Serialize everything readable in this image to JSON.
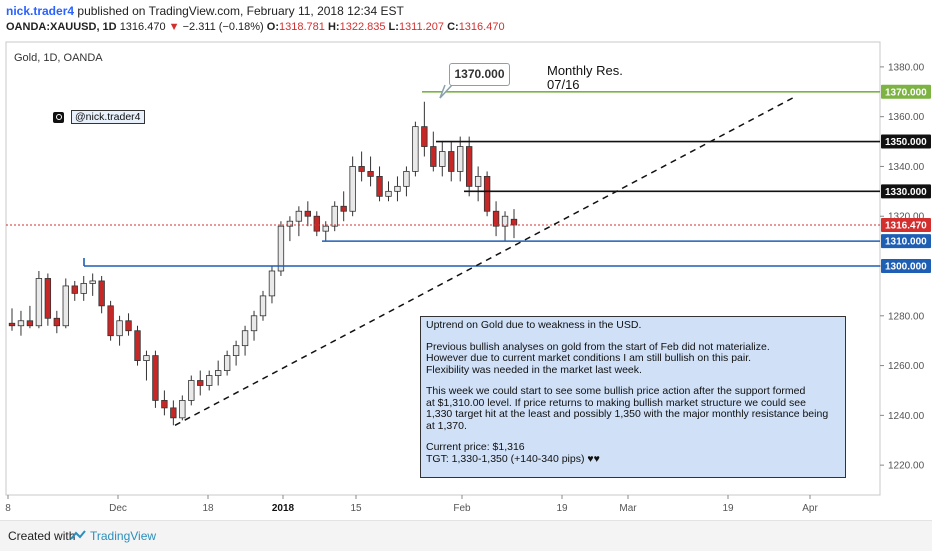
{
  "header": {
    "author": "nick.trader4",
    "published_text": "published on TradingView.com, February 11, 2018 12:34 EST",
    "symbol": "OANDA:XAUUSD, 1D",
    "last": "1316.470",
    "change_arrow": "▼",
    "change": "−2.311 (−0.18%)",
    "o_label": "O:",
    "o_value": "1318.781",
    "h_label": "H:",
    "h_value": "1322.835",
    "l_label": "L:",
    "l_value": "1311.207",
    "c_label": "C:",
    "c_value": "1316.470"
  },
  "chart_title": "Gold, 1D, OANDA",
  "handle": "@nick.trader4",
  "annotation_price": "1370.000",
  "monthly_label_line1": "Monthly Res.",
  "monthly_label_line2": "07/16",
  "note": {
    "p1": "Uptrend on Gold due to weakness in the USD.",
    "p2": "Previous bullish analyses on gold from the start of Feb did not materialize.\nHowever due to current market conditions I am still bullish on this pair.\nFlexibility was needed in the market last week.",
    "p3": "This week we could start to see some bullish price action after the support formed\nat $1,310.00 level. If price returns to making bullish market structure we could see\n1,330 target hit at the least and possibly 1,350 with the major monthly resistance being\nat 1,370.",
    "p4": "Current price: $1,316\nTGT: 1,330-1,350 (+140-340 pips) ♥♥"
  },
  "footer": {
    "created": "Created with",
    "brand": "TradingView"
  },
  "colors": {
    "up": "#e9e9e9",
    "down": "#c62828",
    "green_line": "#7cb342",
    "black_line": "#111111",
    "blue_line": "#1e5fb4",
    "current_price": "#d32f2f"
  },
  "chart_data": {
    "type": "candlestick",
    "title": "Gold, 1D, OANDA",
    "ylim": [
      1208,
      1390
    ],
    "y_ticks": [
      1220,
      1240,
      1260,
      1280,
      1300,
      1320,
      1340,
      1360,
      1380
    ],
    "x_tick_labels": [
      "8",
      "Dec",
      "18",
      "2018",
      "15",
      "Feb",
      "19",
      "Mar",
      "19",
      "Apr"
    ],
    "candles": [
      {
        "o": 1277,
        "h": 1283,
        "l": 1274,
        "c": 1276
      },
      {
        "o": 1276,
        "h": 1282,
        "l": 1272,
        "c": 1278
      },
      {
        "o": 1278,
        "h": 1284,
        "l": 1275,
        "c": 1276
      },
      {
        "o": 1276,
        "h": 1298,
        "l": 1275,
        "c": 1295
      },
      {
        "o": 1295,
        "h": 1297,
        "l": 1276,
        "c": 1279
      },
      {
        "o": 1279,
        "h": 1282,
        "l": 1273,
        "c": 1276
      },
      {
        "o": 1276,
        "h": 1295,
        "l": 1275,
        "c": 1292
      },
      {
        "o": 1292,
        "h": 1294,
        "l": 1286,
        "c": 1289
      },
      {
        "o": 1289,
        "h": 1296,
        "l": 1286,
        "c": 1293
      },
      {
        "o": 1293,
        "h": 1297,
        "l": 1288,
        "c": 1294
      },
      {
        "o": 1294,
        "h": 1296,
        "l": 1281,
        "c": 1284
      },
      {
        "o": 1284,
        "h": 1286,
        "l": 1270,
        "c": 1272
      },
      {
        "o": 1272,
        "h": 1280,
        "l": 1268,
        "c": 1278
      },
      {
        "o": 1278,
        "h": 1281,
        "l": 1272,
        "c": 1274
      },
      {
        "o": 1274,
        "h": 1276,
        "l": 1260,
        "c": 1262
      },
      {
        "o": 1262,
        "h": 1266,
        "l": 1254,
        "c": 1264
      },
      {
        "o": 1264,
        "h": 1266,
        "l": 1243,
        "c": 1246
      },
      {
        "o": 1246,
        "h": 1250,
        "l": 1240,
        "c": 1243
      },
      {
        "o": 1243,
        "h": 1246,
        "l": 1236,
        "c": 1239
      },
      {
        "o": 1239,
        "h": 1248,
        "l": 1238,
        "c": 1246
      },
      {
        "o": 1246,
        "h": 1256,
        "l": 1244,
        "c": 1254
      },
      {
        "o": 1254,
        "h": 1258,
        "l": 1248,
        "c": 1252
      },
      {
        "o": 1252,
        "h": 1258,
        "l": 1250,
        "c": 1256
      },
      {
        "o": 1256,
        "h": 1262,
        "l": 1252,
        "c": 1258
      },
      {
        "o": 1258,
        "h": 1266,
        "l": 1256,
        "c": 1264
      },
      {
        "o": 1264,
        "h": 1270,
        "l": 1260,
        "c": 1268
      },
      {
        "o": 1268,
        "h": 1276,
        "l": 1264,
        "c": 1274
      },
      {
        "o": 1274,
        "h": 1282,
        "l": 1270,
        "c": 1280
      },
      {
        "o": 1280,
        "h": 1290,
        "l": 1278,
        "c": 1288
      },
      {
        "o": 1288,
        "h": 1300,
        "l": 1285,
        "c": 1298
      },
      {
        "o": 1298,
        "h": 1318,
        "l": 1296,
        "c": 1316
      },
      {
        "o": 1316,
        "h": 1320,
        "l": 1310,
        "c": 1318
      },
      {
        "o": 1318,
        "h": 1324,
        "l": 1312,
        "c": 1322
      },
      {
        "o": 1322,
        "h": 1326,
        "l": 1316,
        "c": 1320
      },
      {
        "o": 1320,
        "h": 1322,
        "l": 1312,
        "c": 1314
      },
      {
        "o": 1314,
        "h": 1318,
        "l": 1310,
        "c": 1316
      },
      {
        "o": 1316,
        "h": 1326,
        "l": 1314,
        "c": 1324
      },
      {
        "o": 1324,
        "h": 1330,
        "l": 1318,
        "c": 1322
      },
      {
        "o": 1322,
        "h": 1344,
        "l": 1320,
        "c": 1340
      },
      {
        "o": 1340,
        "h": 1346,
        "l": 1334,
        "c": 1338
      },
      {
        "o": 1338,
        "h": 1344,
        "l": 1332,
        "c": 1336
      },
      {
        "o": 1336,
        "h": 1340,
        "l": 1326,
        "c": 1328
      },
      {
        "o": 1328,
        "h": 1334,
        "l": 1326,
        "c": 1330
      },
      {
        "o": 1330,
        "h": 1336,
        "l": 1326,
        "c": 1332
      },
      {
        "o": 1332,
        "h": 1340,
        "l": 1328,
        "c": 1338
      },
      {
        "o": 1338,
        "h": 1358,
        "l": 1336,
        "c": 1356
      },
      {
        "o": 1356,
        "h": 1366,
        "l": 1344,
        "c": 1348
      },
      {
        "o": 1348,
        "h": 1354,
        "l": 1338,
        "c": 1340
      },
      {
        "o": 1340,
        "h": 1350,
        "l": 1336,
        "c": 1346
      },
      {
        "o": 1346,
        "h": 1350,
        "l": 1334,
        "c": 1338
      },
      {
        "o": 1338,
        "h": 1352,
        "l": 1334,
        "c": 1348
      },
      {
        "o": 1348,
        "h": 1352,
        "l": 1328,
        "c": 1332
      },
      {
        "o": 1332,
        "h": 1340,
        "l": 1326,
        "c": 1336
      },
      {
        "o": 1336,
        "h": 1338,
        "l": 1320,
        "c": 1322
      },
      {
        "o": 1322,
        "h": 1326,
        "l": 1312,
        "c": 1316
      },
      {
        "o": 1316,
        "h": 1322,
        "l": 1310,
        "c": 1320
      },
      {
        "o": 1318.781,
        "h": 1322.835,
        "l": 1311.207,
        "c": 1316.47
      }
    ],
    "horizontal_levels": [
      {
        "price": 1370,
        "label": "1370.000",
        "color": "#7cb342"
      },
      {
        "price": 1350,
        "label": "1350.000",
        "color": "#111111"
      },
      {
        "price": 1330,
        "label": "1330.000",
        "color": "#111111"
      },
      {
        "price": 1316.47,
        "label": "1316.470",
        "color": "#d32f2f"
      },
      {
        "price": 1310,
        "label": "1310.000",
        "color": "#1e5fb4"
      },
      {
        "price": 1300,
        "label": "1300.000",
        "color": "#1e5fb4"
      }
    ]
  }
}
